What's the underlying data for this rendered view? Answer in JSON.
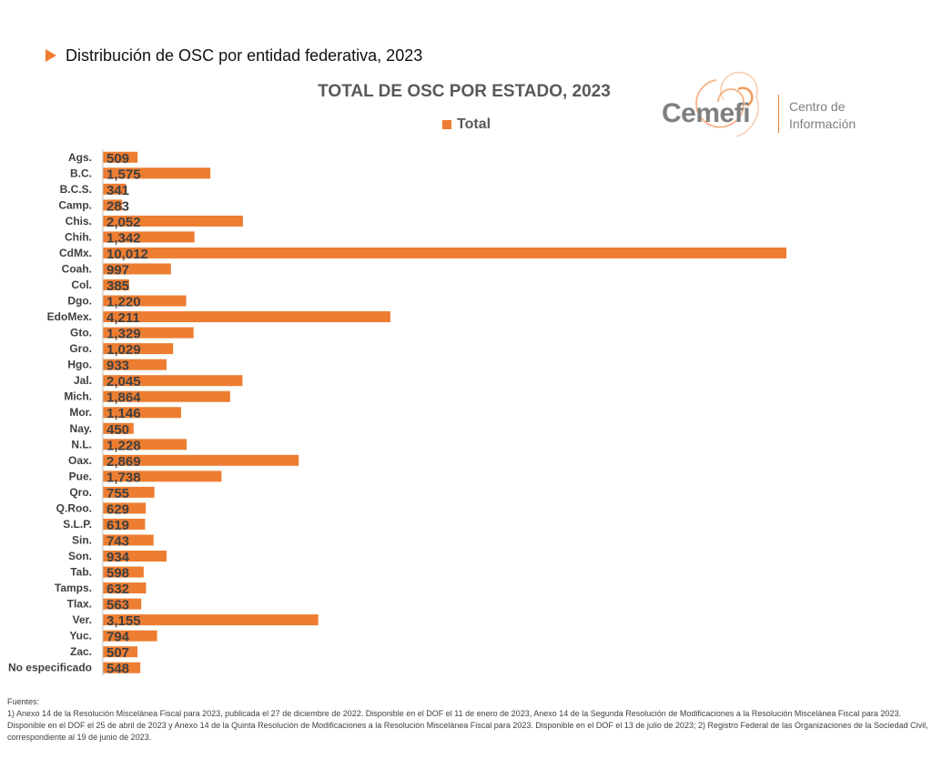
{
  "header": {
    "section_title": "Distribución de OSC por entidad federativa, 2023",
    "arrow_icon": "triangle-right-icon"
  },
  "logo": {
    "word": "Cemefi",
    "subtitle_line1": "Centro de",
    "subtitle_line2": "Información",
    "accent": "#ED7D31"
  },
  "chart_data": {
    "type": "bar",
    "orientation": "horizontal",
    "title": "TOTAL DE OSC POR ESTADO, 2023",
    "legend": {
      "position": "top",
      "entries": [
        "Total"
      ]
    },
    "color": "#ED7D31",
    "xlim": [
      0,
      10012
    ],
    "grid": false,
    "categories": [
      "Ags.",
      "B.C.",
      "B.C.S.",
      "Camp.",
      "Chis.",
      "Chih.",
      "CdMx.",
      "Coah.",
      "Col.",
      "Dgo.",
      "EdoMex.",
      "Gto.",
      "Gro.",
      "Hgo.",
      "Jal.",
      "Mich.",
      "Mor.",
      "Nay.",
      "N.L.",
      "Oax.",
      "Pue.",
      "Qro.",
      "Q.Roo.",
      "S.L.P.",
      "Sin.",
      "Son.",
      "Tab.",
      "Tamps.",
      "Tlax.",
      "Ver.",
      "Yuc.",
      "Zac.",
      "No especificado"
    ],
    "series": [
      {
        "name": "Total",
        "values": [
          509,
          1575,
          341,
          283,
          2052,
          1342,
          10012,
          997,
          385,
          1220,
          4211,
          1329,
          1029,
          933,
          2045,
          1864,
          1146,
          450,
          1228,
          2869,
          1738,
          755,
          629,
          619,
          743,
          934,
          598,
          632,
          563,
          3155,
          794,
          507,
          548
        ],
        "labels": [
          "509",
          "1,575",
          "341",
          "283",
          "2,052",
          "1,342",
          "10,012",
          "997",
          "385",
          "1,220",
          "4,211",
          "1,329",
          "1,029",
          "933",
          "2,045",
          "1,864",
          "1,146",
          "450",
          "1,228",
          "2,869",
          "1,738",
          "755",
          "629",
          "619",
          "743",
          "934",
          "598",
          "632",
          "563",
          "3,155",
          "794",
          "507",
          "548"
        ]
      }
    ]
  },
  "footer": {
    "heading": "Fuentes:",
    "text": "1) Anexo 14 de la Resolución Miscelánea Fiscal para 2023, publicada el 27 de diciembre de 2022. Disponible en el DOF el 11 de enero de 2023, Anexo 14 de la Segunda Resolución de Modificaciones a la Resolución Miscelánea Fiscal para 2023. Disponible en el DOF el 25 de abril de 2023 y Anexo 14 de la Quinta Resolución de Modificaciones a la Resolución Miscelánea Fiscal para 2023. Disponible en el DOF el 13 de julio de 2023; 2) Registro Federal de las Organizaciones de la Sociedad Civil, correspondiente al 19 de junio de 2023."
  }
}
